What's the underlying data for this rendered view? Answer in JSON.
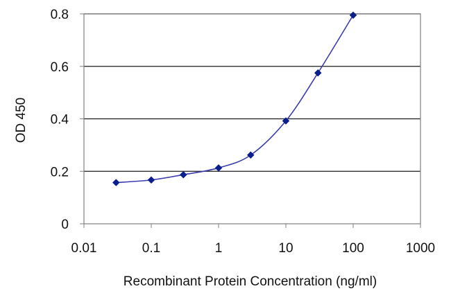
{
  "chart_data": {
    "type": "line",
    "title": "",
    "xlabel": "Recombinant Protein Concentration (ng/ml)",
    "ylabel": "OD 450",
    "x_scale": "log",
    "xlim": [
      0.01,
      1000
    ],
    "ylim": [
      0,
      0.8
    ],
    "x_ticks": [
      "0.01",
      "0.1",
      "1",
      "10",
      "100",
      "1000"
    ],
    "x_tick_values": [
      0.01,
      0.1,
      1,
      10,
      100,
      1000
    ],
    "y_ticks": [
      "0",
      "0.2",
      "0.4",
      "0.6",
      "0.8"
    ],
    "y_tick_values": [
      0,
      0.2,
      0.4,
      0.6,
      0.8
    ],
    "grid": "horizontal",
    "legend": "none",
    "series": [
      {
        "color": "#3b3bb0",
        "marker_color": "#0a1e8c",
        "marker": "diamond",
        "points": [
          {
            "x": 0.03,
            "y": 0.157
          },
          {
            "x": 0.1,
            "y": 0.167
          },
          {
            "x": 0.3,
            "y": 0.187
          },
          {
            "x": 1,
            "y": 0.213
          },
          {
            "x": 3,
            "y": 0.262
          },
          {
            "x": 10,
            "y": 0.392
          },
          {
            "x": 30,
            "y": 0.575
          },
          {
            "x": 100,
            "y": 0.795
          }
        ]
      }
    ]
  }
}
